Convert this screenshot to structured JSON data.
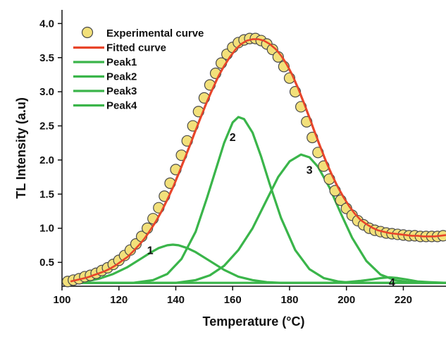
{
  "chart_data": {
    "type": "line",
    "xlabel": "Temperature (°C)",
    "ylabel": "TL Intensity (a.u)",
    "xlim": [
      100,
      235
    ],
    "ylim": [
      0.15,
      4.2
    ],
    "x_ticks": [
      100,
      120,
      140,
      160,
      180,
      200,
      220
    ],
    "y_ticks": [
      0.5,
      1.0,
      1.5,
      2.0,
      2.5,
      3.0,
      3.5,
      4.0
    ],
    "x_tick_labels": [
      "100",
      "120",
      "140",
      "160",
      "180",
      "200",
      "220"
    ],
    "y_tick_labels": [
      "0.5",
      "1.0",
      "1.5",
      "2.0",
      "2.5",
      "3.0",
      "3.5",
      "4.0"
    ],
    "grid": false,
    "legend_position": "top-left",
    "colors": {
      "experimental_fill": "#f2e07a",
      "experimental_edge": "#4a4a4a",
      "fitted": "#e8452a",
      "peak": "#3ab54a"
    },
    "baseline": 0.2,
    "series": [
      {
        "name": "Experimental curve",
        "style": "markers",
        "x": [
          102,
          104,
          106,
          108,
          110,
          112,
          114,
          116,
          118,
          120,
          122,
          124,
          126,
          128,
          130,
          132,
          134,
          136,
          138,
          140,
          142,
          144,
          146,
          148,
          150,
          152,
          154,
          156,
          158,
          160,
          162,
          164,
          166,
          168,
          170,
          172,
          174,
          176,
          178,
          180,
          182,
          184,
          186,
          188,
          190,
          192,
          194,
          196,
          198,
          200,
          202,
          204,
          206,
          208,
          210,
          212,
          214,
          216,
          218,
          220,
          222,
          224,
          226,
          228,
          230,
          232,
          234
        ],
        "y": [
          0.22,
          0.24,
          0.26,
          0.29,
          0.31,
          0.34,
          0.38,
          0.42,
          0.47,
          0.53,
          0.6,
          0.68,
          0.77,
          0.88,
          1.0,
          1.14,
          1.3,
          1.47,
          1.66,
          1.86,
          2.07,
          2.28,
          2.5,
          2.71,
          2.91,
          3.1,
          3.27,
          3.42,
          3.55,
          3.65,
          3.72,
          3.76,
          3.78,
          3.78,
          3.75,
          3.7,
          3.62,
          3.51,
          3.37,
          3.2,
          3.0,
          2.78,
          2.56,
          2.33,
          2.11,
          1.91,
          1.72,
          1.55,
          1.41,
          1.29,
          1.19,
          1.11,
          1.05,
          1.0,
          0.97,
          0.95,
          0.93,
          0.92,
          0.91,
          0.9,
          0.89,
          0.89,
          0.88,
          0.88,
          0.88,
          0.88,
          0.89
        ]
      },
      {
        "name": "Fitted curve",
        "style": "line",
        "x": [
          103,
          105,
          107,
          109,
          111,
          113,
          115,
          117,
          119,
          121,
          123,
          125,
          127,
          129,
          131,
          133,
          135,
          137,
          139,
          141,
          143,
          145,
          147,
          149,
          151,
          153,
          155,
          157,
          159,
          161,
          163,
          165,
          167,
          169,
          171,
          173,
          175,
          177,
          179,
          181,
          183,
          185,
          187,
          189,
          191,
          193,
          195,
          197,
          199,
          201,
          203,
          205,
          207,
          209,
          211,
          213,
          215,
          217,
          219,
          221,
          223,
          225,
          227,
          229,
          231,
          233,
          235
        ],
        "y": [
          0.22,
          0.24,
          0.26,
          0.28,
          0.31,
          0.34,
          0.37,
          0.41,
          0.46,
          0.52,
          0.58,
          0.66,
          0.75,
          0.85,
          0.97,
          1.1,
          1.25,
          1.42,
          1.6,
          1.8,
          2.01,
          2.22,
          2.44,
          2.65,
          2.86,
          3.05,
          3.23,
          3.38,
          3.51,
          3.62,
          3.7,
          3.75,
          3.77,
          3.77,
          3.75,
          3.7,
          3.63,
          3.53,
          3.4,
          3.24,
          3.05,
          2.84,
          2.62,
          2.39,
          2.17,
          1.96,
          1.77,
          1.6,
          1.45,
          1.32,
          1.21,
          1.12,
          1.06,
          1.01,
          0.97,
          0.95,
          0.93,
          0.92,
          0.91,
          0.9,
          0.89,
          0.89,
          0.88,
          0.88,
          0.88,
          0.89,
          0.9
        ]
      },
      {
        "name": "Peak1",
        "style": "line",
        "x": [
          103,
          108,
          113,
          118,
          123,
          128,
          131,
          134,
          137,
          139,
          141,
          144,
          147,
          152,
          157,
          162,
          167,
          172,
          177,
          182,
          235
        ],
        "y": [
          0.2,
          0.22,
          0.26,
          0.33,
          0.43,
          0.56,
          0.64,
          0.71,
          0.75,
          0.76,
          0.75,
          0.71,
          0.65,
          0.52,
          0.39,
          0.29,
          0.24,
          0.21,
          0.2,
          0.2,
          0.2
        ]
      },
      {
        "name": "Peak2",
        "style": "line",
        "x": [
          103,
          125,
          132,
          137,
          142,
          147,
          151,
          154,
          157,
          160,
          162,
          164,
          167,
          170,
          173,
          177,
          182,
          187,
          192,
          197,
          202,
          210,
          235
        ],
        "y": [
          0.2,
          0.2,
          0.24,
          0.33,
          0.55,
          0.95,
          1.45,
          1.85,
          2.25,
          2.55,
          2.63,
          2.6,
          2.4,
          2.05,
          1.65,
          1.15,
          0.68,
          0.4,
          0.27,
          0.22,
          0.2,
          0.2,
          0.2
        ]
      },
      {
        "name": "Peak3",
        "style": "line",
        "x": [
          103,
          140,
          147,
          152,
          157,
          162,
          167,
          172,
          176,
          180,
          184,
          187,
          190,
          194,
          198,
          202,
          207,
          212,
          217,
          222,
          227,
          235
        ],
        "y": [
          0.2,
          0.2,
          0.24,
          0.31,
          0.45,
          0.68,
          1.0,
          1.42,
          1.75,
          1.98,
          2.08,
          2.04,
          1.9,
          1.6,
          1.22,
          0.86,
          0.52,
          0.32,
          0.24,
          0.21,
          0.2,
          0.2
        ]
      },
      {
        "name": "Peak4",
        "style": "line",
        "x": [
          103,
          195,
          200,
          205,
          209,
          212,
          215,
          218,
          221,
          225,
          229,
          235
        ],
        "y": [
          0.2,
          0.2,
          0.21,
          0.23,
          0.25,
          0.27,
          0.28,
          0.27,
          0.25,
          0.22,
          0.21,
          0.2
        ]
      }
    ],
    "annotations": [
      {
        "text": "1",
        "x": 131,
        "y": 0.62
      },
      {
        "text": "2",
        "x": 160,
        "y": 2.28
      },
      {
        "text": "3",
        "x": 187,
        "y": 1.8
      },
      {
        "text": "4",
        "x": 216,
        "y": 0.15
      }
    ]
  }
}
